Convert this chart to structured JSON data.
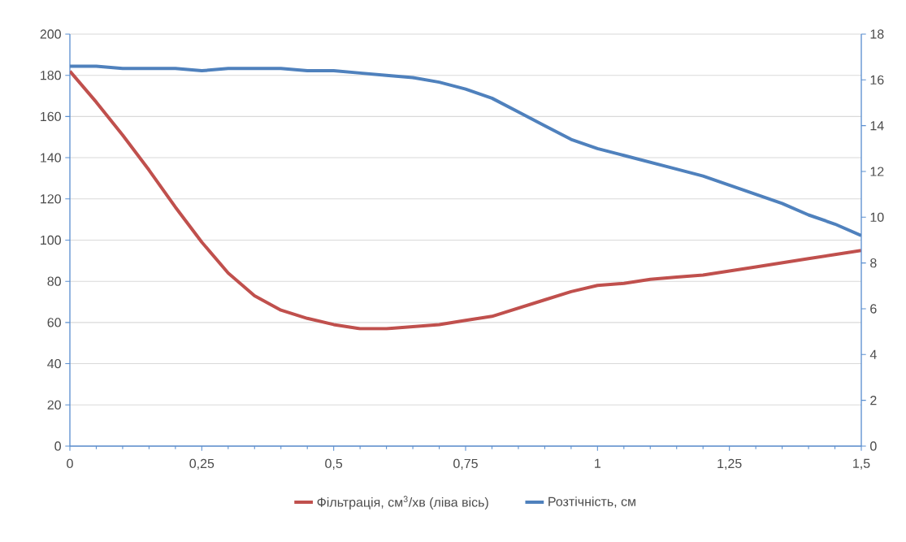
{
  "chart_data": {
    "type": "line",
    "x": [
      0,
      0.05,
      0.1,
      0.15,
      0.2,
      0.25,
      0.3,
      0.35,
      0.4,
      0.45,
      0.5,
      0.55,
      0.6,
      0.65,
      0.7,
      0.75,
      0.8,
      0.85,
      0.9,
      0.95,
      1.0,
      1.05,
      1.1,
      1.15,
      1.2,
      1.25,
      1.3,
      1.35,
      1.4,
      1.45,
      1.5
    ],
    "series": [
      {
        "name": "Фільтрація, см$^{3}$/хв (ліва вісь)",
        "color": "#c0504d",
        "values": [
          182,
          167,
          151,
          134,
          116,
          99,
          84,
          73,
          66,
          62,
          59,
          57,
          57,
          58,
          59,
          61,
          63,
          67,
          71,
          75,
          78,
          79,
          81,
          82,
          83,
          85,
          87,
          89,
          91,
          93,
          95
        ]
      },
      {
        "name": "Розтічність, см",
        "color": "#4f81bd",
        "axis": "y2",
        "values": [
          16.6,
          16.6,
          16.5,
          16.5,
          16.5,
          16.4,
          16.5,
          16.5,
          16.5,
          16.4,
          16.4,
          16.3,
          16.2,
          16.1,
          15.9,
          15.6,
          15.2,
          14.6,
          14.0,
          13.4,
          13.0,
          12.7,
          12.4,
          12.1,
          11.8,
          11.4,
          11.0,
          10.6,
          10.1,
          9.7,
          9.2
        ]
      }
    ],
    "xlim": [
      0,
      1.5
    ],
    "xticks": [
      0,
      {
        "value": 0.25,
        "label": "0,25"
      },
      {
        "value": 0.5,
        "label": "0,5"
      },
      {
        "value": 0.75,
        "label": "0,75"
      },
      1,
      {
        "value": 1.25,
        "label": "1,25"
      },
      {
        "value": 1.5,
        "label": "1,5"
      }
    ],
    "ylim": [
      0,
      200
    ],
    "yticks": [
      0,
      20,
      40,
      60,
      80,
      100,
      120,
      140,
      160,
      180,
      200
    ],
    "y2lim": [
      0,
      18
    ],
    "y2ticks": [
      0,
      2,
      4,
      6,
      8,
      10,
      12,
      14,
      16,
      18
    ],
    "grid": "y",
    "legend": "bottom",
    "marker": "none",
    "line_style": "solid"
  }
}
